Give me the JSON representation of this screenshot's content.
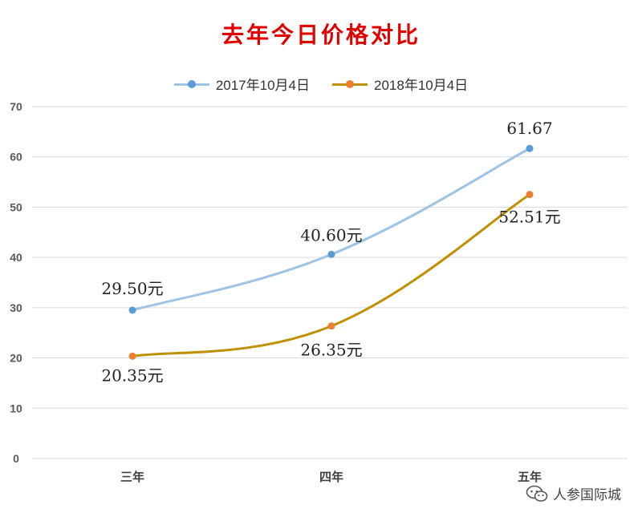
{
  "chart_data": {
    "type": "line",
    "title": "去年今日价格对比",
    "categories": [
      "三年",
      "四年",
      "五年"
    ],
    "series": [
      {
        "name": "2017年10月4日",
        "values": [
          29.5,
          40.6,
          61.67
        ],
        "labels": [
          "29.50元",
          "40.60元",
          "61.67"
        ],
        "color": "#9DC3E6",
        "marker_color": "#5B9BD5"
      },
      {
        "name": "2018年10月4日",
        "values": [
          20.35,
          26.35,
          52.51
        ],
        "labels": [
          "20.35元",
          "26.35元",
          "52.51元"
        ],
        "color": "#BF9000",
        "marker_color": "#ED7D31"
      }
    ],
    "ylim": [
      0,
      70
    ],
    "yticks": [
      "0",
      "10",
      "20",
      "30",
      "40",
      "50",
      "60",
      "70"
    ],
    "grid": true,
    "legend_position": "top",
    "title_color": "#E00000"
  },
  "watermark": {
    "text": "人参国际城",
    "icon": "wechat-icon"
  }
}
